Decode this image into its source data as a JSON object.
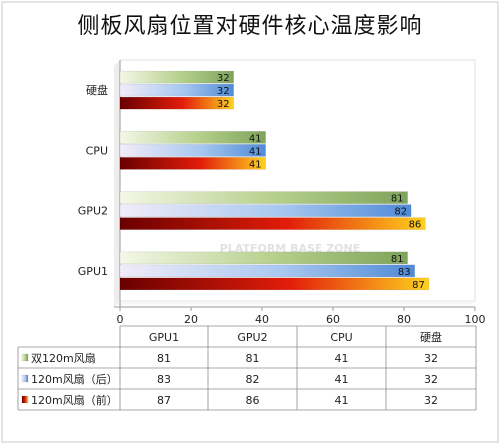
{
  "chart_data": {
    "type": "bar",
    "orientation": "horizontal",
    "title": "侧板风扇位置对硬件核心温度影响",
    "categories": [
      "GPU1",
      "GPU2",
      "CPU",
      "硬盘"
    ],
    "series": [
      {
        "name": "双120m风扇",
        "values": [
          81,
          81,
          41,
          32
        ]
      },
      {
        "name": "120m风扇（后）",
        "values": [
          83,
          82,
          41,
          32
        ]
      },
      {
        "name": "120m风扇（前）",
        "values": [
          87,
          86,
          41,
          32
        ]
      }
    ],
    "xlim": [
      0,
      100
    ],
    "xticks": [
      "0",
      "20",
      "40",
      "60",
      "80",
      "100"
    ],
    "grid": false,
    "legend": "data-table-bottom",
    "colors": {
      "series_1": [
        "#f4f7e6",
        "#b4cf8a",
        "#7ea35a"
      ],
      "series_2": [
        "#f1ecf8",
        "#a8c8f0",
        "#4f8ad8"
      ],
      "series_3": [
        "#6a0000",
        "#e21d0a",
        "#ffd21e"
      ],
      "axis": "#9a9a9a",
      "frame": "#c8c8c8"
    }
  }
}
